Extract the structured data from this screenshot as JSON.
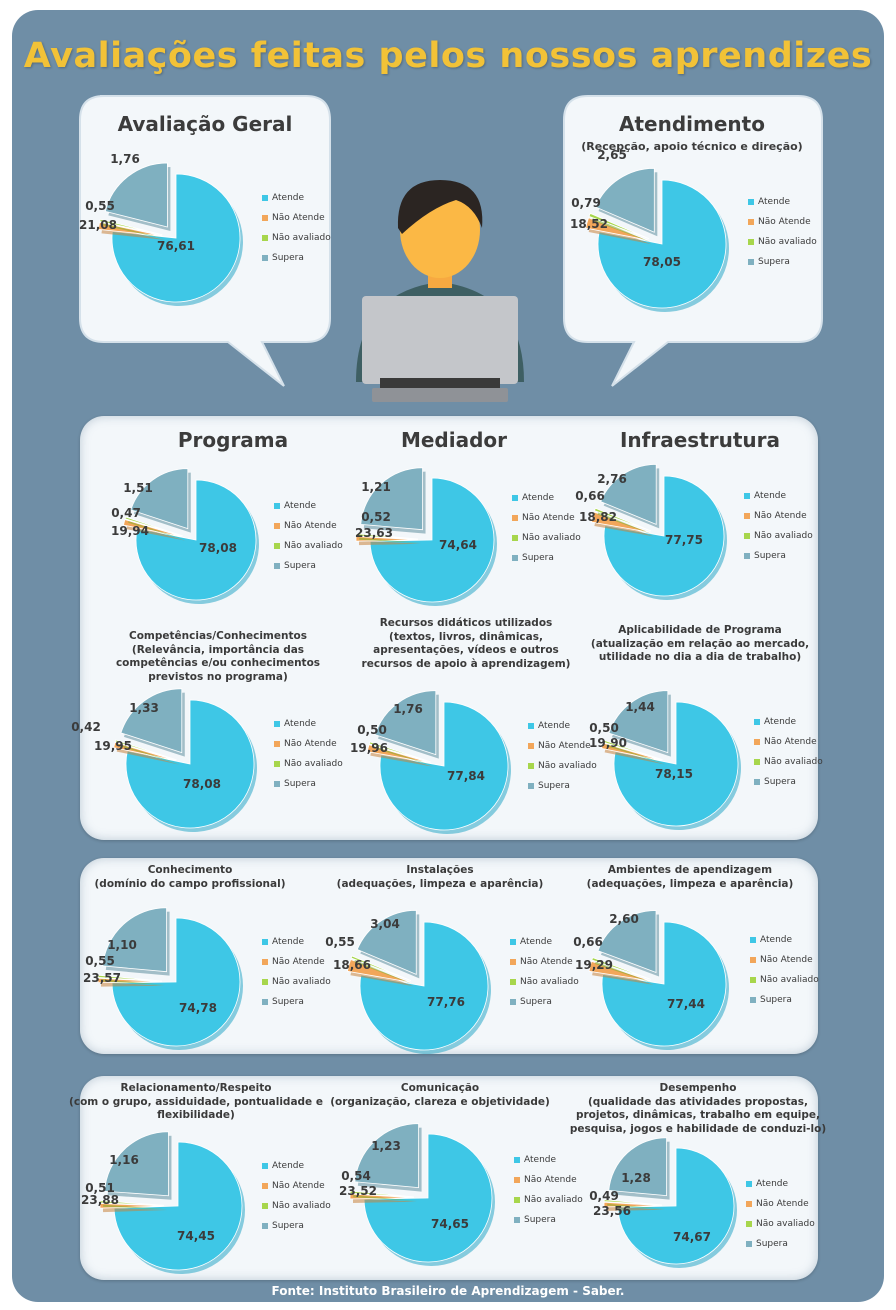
{
  "title": "Avaliações feitas pelos nossos aprendizes",
  "source": "Fonte: Instituto Brasileiro de Aprendizagem - Saber.",
  "legend_labels": [
    "Atende",
    "Não Atende",
    "Não avaliado",
    "Supera"
  ],
  "colors": {
    "background": "#6f8ea6",
    "title": "#f2c237",
    "atende": "#3ec7e6",
    "nao_atende": "#f2a65a",
    "nao_avaliado": "#a7d64c",
    "supera": "#7fb0c0"
  },
  "illustration": {
    "subject": "person-with-laptop",
    "icon": "user-laptop-icon"
  },
  "chart_data": [
    {
      "id": "avaliacao-geral",
      "type": "pie",
      "title": "Avaliação Geral",
      "subtitle": "",
      "categories": [
        "Atende",
        "Não Atende",
        "Não avaliado",
        "Supera"
      ],
      "values": [
        76.61,
        1.76,
        0.55,
        21.08
      ],
      "labels": [
        "76,61",
        "1,76",
        "0,55",
        "21,08"
      ],
      "legend": "right"
    },
    {
      "id": "atendimento",
      "type": "pie",
      "title": "Atendimento",
      "subtitle": "(Recepção, apoio técnico e direção)",
      "categories": [
        "Atende",
        "Não Atende",
        "Não avaliado",
        "Supera"
      ],
      "values": [
        78.05,
        2.65,
        0.79,
        18.52
      ],
      "labels": [
        "78,05",
        "2,65",
        "0,79",
        "18,52"
      ],
      "legend": "right"
    },
    {
      "id": "programa",
      "type": "pie",
      "title": "Programa",
      "subtitle": "",
      "categories": [
        "Atende",
        "Não Atende",
        "Não avaliado",
        "Supera"
      ],
      "values": [
        78.08,
        1.51,
        0.47,
        19.94
      ],
      "labels": [
        "78,08",
        "1,51",
        "0,47",
        "19,94"
      ],
      "legend": "right"
    },
    {
      "id": "mediador",
      "type": "pie",
      "title": "Mediador",
      "subtitle": "",
      "categories": [
        "Atende",
        "Não Atende",
        "Não avaliado",
        "Supera"
      ],
      "values": [
        74.64,
        1.21,
        0.52,
        23.63
      ],
      "labels": [
        "74,64",
        "1,21",
        "0,52",
        "23,63"
      ],
      "legend": "right"
    },
    {
      "id": "infraestrutura",
      "type": "pie",
      "title": "Infraestrutura",
      "subtitle": "",
      "categories": [
        "Atende",
        "Não Atende",
        "Não avaliado",
        "Supera"
      ],
      "values": [
        77.75,
        2.76,
        0.66,
        18.82
      ],
      "labels": [
        "77,75",
        "2,76",
        "0,66",
        "18,82"
      ],
      "legend": "right"
    },
    {
      "id": "competencias",
      "type": "pie",
      "title": "Competências/Conhecimentos",
      "subtitle": "(Relevância, importância das competências e/ou conhecimentos previstos no programa)",
      "categories": [
        "Atende",
        "Não Atende",
        "Não avaliado",
        "Supera"
      ],
      "values": [
        78.08,
        1.33,
        0.42,
        19.95
      ],
      "labels": [
        "78,08",
        "1,33",
        "0,42",
        "19,95"
      ],
      "legend": "right"
    },
    {
      "id": "recursos",
      "type": "pie",
      "title": "Recursos didáticos utilizados",
      "subtitle": "(textos, livros, dinâmicas, apresentações, vídeos e outros recursos de apoio à aprendizagem)",
      "categories": [
        "Atende",
        "Não Atende",
        "Não avaliado",
        "Supera"
      ],
      "values": [
        77.84,
        1.76,
        0.5,
        19.96
      ],
      "labels": [
        "77,84",
        "1,76",
        "0,50",
        "19,96"
      ],
      "legend": "right"
    },
    {
      "id": "aplicabilidade",
      "type": "pie",
      "title": "Aplicabilidade de Programa",
      "subtitle": "(atualização em relação ao mercado, utilidade no dia a dia de trabalho)",
      "categories": [
        "Atende",
        "Não Atende",
        "Não avaliado",
        "Supera"
      ],
      "values": [
        78.15,
        1.44,
        0.5,
        19.9
      ],
      "labels": [
        "78,15",
        "1,44",
        "0,50",
        "19,90"
      ],
      "legend": "right"
    },
    {
      "id": "conhecimento",
      "type": "pie",
      "title": "Conhecimento",
      "subtitle": "(domínio do campo profissional)",
      "categories": [
        "Atende",
        "Não Atende",
        "Não avaliado",
        "Supera"
      ],
      "values": [
        74.78,
        1.1,
        0.55,
        23.57
      ],
      "labels": [
        "74,78",
        "1,10",
        "0,55",
        "23,57"
      ],
      "legend": "right"
    },
    {
      "id": "instalacoes",
      "type": "pie",
      "title": "Instalações",
      "subtitle": "(adequações, limpeza e aparência)",
      "categories": [
        "Atende",
        "Não Atende",
        "Não avaliado",
        "Supera"
      ],
      "values": [
        77.76,
        3.04,
        0.55,
        18.66
      ],
      "labels": [
        "77,76",
        "3,04",
        "0,55",
        "18,66"
      ],
      "legend": "right"
    },
    {
      "id": "ambientes",
      "type": "pie",
      "title": "Ambientes de apendizagem",
      "subtitle": "(adequações, limpeza e aparência)",
      "categories": [
        "Atende",
        "Não Atende",
        "Não avaliado",
        "Supera"
      ],
      "values": [
        77.44,
        2.6,
        0.66,
        19.29
      ],
      "labels": [
        "77,44",
        "2,60",
        "0,66",
        "19,29"
      ],
      "legend": "right"
    },
    {
      "id": "relacionamento",
      "type": "pie",
      "title": "Relacionamento/Respeito",
      "subtitle": "(com o grupo, assiduidade, pontualidade e flexibilidade)",
      "categories": [
        "Atende",
        "Não Atende",
        "Não avaliado",
        "Supera"
      ],
      "values": [
        74.45,
        1.16,
        0.51,
        23.88
      ],
      "labels": [
        "74,45",
        "1,16",
        "0,51",
        "23,88"
      ],
      "legend": "right"
    },
    {
      "id": "comunicacao",
      "type": "pie",
      "title": "Comunicação",
      "subtitle": "(organização, clareza e objetividade)",
      "categories": [
        "Atende",
        "Não Atende",
        "Não avaliado",
        "Supera"
      ],
      "values": [
        74.65,
        1.23,
        0.54,
        23.52
      ],
      "labels": [
        "74,65",
        "1,23",
        "0,54",
        "23,52"
      ],
      "legend": "right"
    },
    {
      "id": "desempenho",
      "type": "pie",
      "title": "Desempenho",
      "subtitle": "(qualidade das atividades propostas, projetos, dinâmicas, trabalho em equipe, pesquisa, jogos e habilidade de conduzi-lo)",
      "categories": [
        "Atende",
        "Não Atende",
        "Não avaliado",
        "Supera"
      ],
      "values": [
        74.67,
        1.28,
        0.49,
        23.56
      ],
      "labels": [
        "74,67",
        "1,28",
        "0,49",
        "23,56"
      ],
      "legend": "right"
    }
  ]
}
